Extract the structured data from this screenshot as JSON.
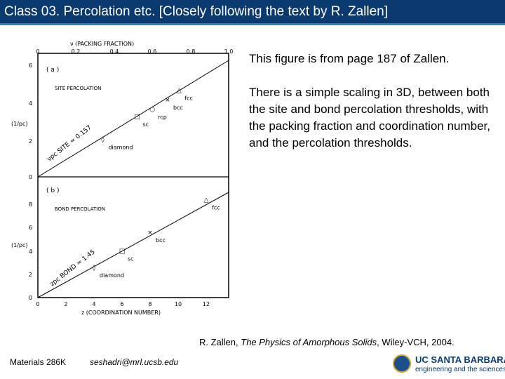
{
  "slide": {
    "title": "Class 03. Percolation etc. [Closely following the text by R. Zallen]",
    "description_1": "This figure is from page 187 of Zallen.",
    "description_2": "There is a simple scaling in 3D, between both the site and bond percolation thresholds, with the packing fraction and coordination number, and the percolation thresholds.",
    "citation_prefix": "R. Zallen, ",
    "citation_title": "The Physics of Amorphous Solids",
    "citation_suffix": ", Wiley-VCH, 2004.",
    "course": "Materials 286K",
    "email": "seshadri@mrl.ucsb.edu",
    "logo_name": "UC SANTA BARBARA",
    "logo_sub": "engineering and the sciences",
    "colors": {
      "title_bar": "#0b3a6e",
      "title_accent": "#3b78c0"
    }
  },
  "figure": {
    "top_axis_label": "ν (PACKING FRACTION)",
    "top_ticks": [
      "0",
      "0.2",
      "0.4",
      "0.6",
      "0.8",
      "1.0"
    ],
    "bottom_axis_label": "z (COORDINATION NUMBER)",
    "bottom_ticks": [
      "0",
      "2",
      "4",
      "6",
      "8",
      "10",
      "12"
    ],
    "y_label": "(1/pc)",
    "panel_a": {
      "tag": "( a )",
      "heading": "SITE PERCOLATION",
      "relation": "νpc SITE ≈ 0.157",
      "y_ticks": [
        "0",
        "2",
        "4",
        "6"
      ],
      "points": [
        {
          "label": "diamond",
          "marker": "◊",
          "x": 0.34,
          "y": 2.0
        },
        {
          "label": "sc",
          "marker": "□",
          "x": 0.52,
          "y": 3.2
        },
        {
          "label": "rcp",
          "marker": "○",
          "x": 0.6,
          "y": 3.6
        },
        {
          "label": "bcc",
          "marker": "×",
          "x": 0.68,
          "y": 4.1
        },
        {
          "label": "fcc",
          "marker": "△",
          "x": 0.74,
          "y": 4.6
        }
      ]
    },
    "panel_b": {
      "tag": "( b )",
      "heading": "BOND PERCOLATION",
      "relation": "zpc BOND ≈ 1.45",
      "y_ticks": [
        "0",
        "2",
        "4",
        "6",
        "8"
      ],
      "points": [
        {
          "label": "diamond",
          "marker": "◊",
          "x": 4,
          "y": 2.6
        },
        {
          "label": "sc",
          "marker": "□",
          "x": 6,
          "y": 4.0
        },
        {
          "label": "bcc",
          "marker": "×",
          "x": 8,
          "y": 5.6
        },
        {
          "label": "fcc",
          "marker": "△",
          "x": 12,
          "y": 8.4
        }
      ]
    }
  }
}
